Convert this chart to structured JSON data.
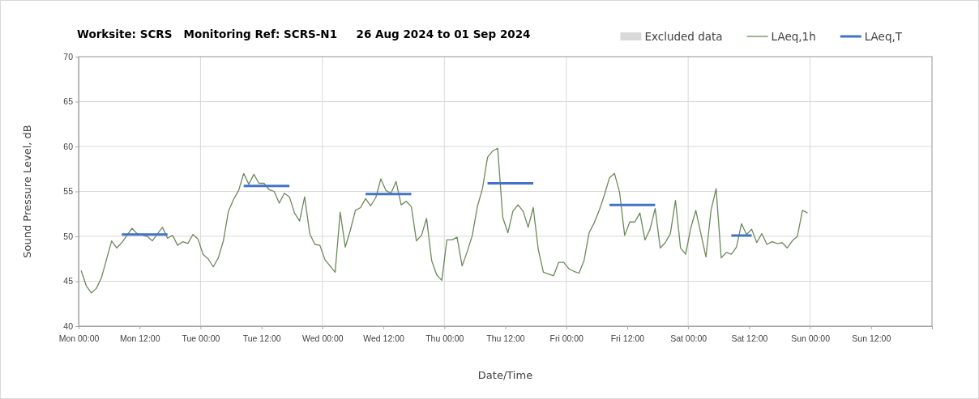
{
  "chart_data": {
    "type": "line",
    "title": "Worksite: SCRS   Monitoring Ref: SCRS-N1     26 Aug 2024 to 01 Sep 2024",
    "xlabel": "Date/Time",
    "ylabel": "Sound Pressure Level, dB",
    "xlim": [
      "2024-08-26T00:00",
      "2024-09-02T00:00"
    ],
    "xticks": [
      {
        "value": "2024-08-26T00:00",
        "label": "Mon 00:00"
      },
      {
        "value": "2024-08-26T12:00",
        "label": "Mon 12:00"
      },
      {
        "value": "2024-08-27T00:00",
        "label": "Tue 00:00"
      },
      {
        "value": "2024-08-27T12:00",
        "label": "Tue 12:00"
      },
      {
        "value": "2024-08-28T00:00",
        "label": "Wed 00:00"
      },
      {
        "value": "2024-08-28T12:00",
        "label": "Wed 12:00"
      },
      {
        "value": "2024-08-29T00:00",
        "label": "Thu 00:00"
      },
      {
        "value": "2024-08-29T12:00",
        "label": "Thu 12:00"
      },
      {
        "value": "2024-08-30T00:00",
        "label": "Fri 00:00"
      },
      {
        "value": "2024-08-30T12:00",
        "label": "Fri 12:00"
      },
      {
        "value": "2024-08-31T00:00",
        "label": "Sat 00:00"
      },
      {
        "value": "2024-08-31T12:00",
        "label": "Sat 12:00"
      },
      {
        "value": "2024-09-01T00:00",
        "label": "Sun 00:00"
      },
      {
        "value": "2024-09-01T12:00",
        "label": "Sun 12:00"
      },
      {
        "value": "2024-09-02T00:00",
        "label": null
      }
    ],
    "ylim": [
      40,
      70
    ],
    "yticks": [
      40,
      45,
      50,
      55,
      60,
      65,
      70
    ],
    "grid": true,
    "legend": "top right",
    "series": [
      {
        "name": "Excluded data",
        "type": "area",
        "color": "#d9d9d9"
      },
      {
        "name": "LAeq,1h",
        "color": "#6b8a5a",
        "x": [
          "2024-08-26T00:30",
          "2024-08-26T01:30",
          "2024-08-26T02:30",
          "2024-08-26T03:30",
          "2024-08-26T04:30",
          "2024-08-26T06:30",
          "2024-08-26T07:30",
          "2024-08-26T08:30",
          "2024-08-26T10:30",
          "2024-08-26T11:30",
          "2024-08-26T13:30",
          "2024-08-26T14:30",
          "2024-08-26T16:30",
          "2024-08-26T17:30",
          "2024-08-26T18:30",
          "2024-08-26T19:30",
          "2024-08-26T20:30",
          "2024-08-26T21:30",
          "2024-08-26T22:30",
          "2024-08-26T23:30",
          "2024-08-27T00:30",
          "2024-08-27T01:30",
          "2024-08-27T02:30",
          "2024-08-27T03:30",
          "2024-08-27T04:30",
          "2024-08-27T05:30",
          "2024-08-27T06:30",
          "2024-08-27T07:30",
          "2024-08-27T08:30",
          "2024-08-27T09:30",
          "2024-08-27T10:30",
          "2024-08-27T11:30",
          "2024-08-27T12:30",
          "2024-08-27T13:30",
          "2024-08-27T14:30",
          "2024-08-27T15:30",
          "2024-08-27T16:30",
          "2024-08-27T17:30",
          "2024-08-27T18:30",
          "2024-08-27T19:30",
          "2024-08-27T20:30",
          "2024-08-27T21:30",
          "2024-08-27T22:30",
          "2024-08-27T23:30",
          "2024-08-28T00:30",
          "2024-08-28T02:30",
          "2024-08-28T03:30",
          "2024-08-28T04:30",
          "2024-08-28T05:30",
          "2024-08-28T06:30",
          "2024-08-28T07:30",
          "2024-08-28T08:30",
          "2024-08-28T09:30",
          "2024-08-28T10:30",
          "2024-08-28T11:30",
          "2024-08-28T12:30",
          "2024-08-28T13:30",
          "2024-08-28T14:30",
          "2024-08-28T15:30",
          "2024-08-28T16:30",
          "2024-08-28T17:30",
          "2024-08-28T18:30",
          "2024-08-28T19:30",
          "2024-08-28T20:30",
          "2024-08-28T21:30",
          "2024-08-28T22:30",
          "2024-08-28T23:30",
          "2024-08-29T00:30",
          "2024-08-29T01:30",
          "2024-08-29T02:30",
          "2024-08-29T03:30",
          "2024-08-29T04:30",
          "2024-08-29T05:30",
          "2024-08-29T06:30",
          "2024-08-29T07:30",
          "2024-08-29T08:30",
          "2024-08-29T09:30",
          "2024-08-29T10:30",
          "2024-08-29T11:30",
          "2024-08-29T12:30",
          "2024-08-29T13:30",
          "2024-08-29T14:30",
          "2024-08-29T15:30",
          "2024-08-29T16:30",
          "2024-08-29T17:30",
          "2024-08-29T18:30",
          "2024-08-29T19:30",
          "2024-08-29T20:30",
          "2024-08-29T21:30",
          "2024-08-29T22:30",
          "2024-08-29T23:30",
          "2024-08-30T00:30",
          "2024-08-30T01:30",
          "2024-08-30T02:30",
          "2024-08-30T03:30",
          "2024-08-30T04:30",
          "2024-08-30T05:30",
          "2024-08-30T06:30",
          "2024-08-30T07:30",
          "2024-08-30T08:30",
          "2024-08-30T09:30",
          "2024-08-30T10:30",
          "2024-08-30T11:30",
          "2024-08-30T12:30",
          "2024-08-30T13:30",
          "2024-08-30T14:30",
          "2024-08-30T15:30",
          "2024-08-30T16:30",
          "2024-08-30T17:30",
          "2024-08-30T18:30",
          "2024-08-30T19:30",
          "2024-08-30T20:30",
          "2024-08-30T21:30",
          "2024-08-30T22:30",
          "2024-08-30T23:30",
          "2024-08-31T00:30",
          "2024-08-31T01:30",
          "2024-08-31T02:30",
          "2024-08-31T03:30",
          "2024-08-31T04:30",
          "2024-08-31T05:30",
          "2024-08-31T06:30",
          "2024-08-31T07:30",
          "2024-08-31T08:30",
          "2024-08-31T09:30",
          "2024-08-31T10:30",
          "2024-08-31T11:30",
          "2024-08-31T12:30",
          "2024-08-31T13:30",
          "2024-08-31T14:30",
          "2024-08-31T15:30",
          "2024-08-31T16:30",
          "2024-08-31T17:30",
          "2024-08-31T18:30",
          "2024-08-31T19:30",
          "2024-08-31T20:30",
          "2024-08-31T21:30",
          "2024-08-31T22:30",
          "2024-08-31T23:30"
        ],
        "values": [
          46.2,
          44.5,
          43.7,
          44.2,
          45.4,
          49.5,
          48.7,
          49.3,
          50.9,
          50.3,
          50.0,
          49.5,
          51.0,
          49.8,
          50.1,
          49.0,
          49.4,
          49.2,
          50.2,
          49.7,
          48.0,
          47.5,
          46.6,
          47.6,
          49.5,
          52.8,
          54.1,
          55.1,
          57.0,
          55.8,
          56.9,
          55.9,
          55.9,
          55.2,
          55.0,
          53.7,
          54.8,
          54.4,
          52.6,
          51.7,
          54.4,
          50.3,
          49.1,
          49.0,
          47.4,
          46.0,
          52.7,
          48.8,
          50.7,
          52.9,
          53.2,
          54.2,
          53.4,
          54.3,
          56.4,
          55.1,
          54.8,
          56.1,
          53.5,
          53.9,
          53.3,
          49.5,
          50.1,
          52.0,
          47.3,
          45.7,
          45.1,
          49.6,
          49.6,
          49.9,
          46.7,
          48.3,
          50.1,
          53.3,
          55.3,
          58.8,
          59.5,
          59.8,
          52.1,
          50.4,
          52.8,
          53.5,
          52.8,
          51.0,
          53.2,
          48.5,
          46.0,
          45.8,
          45.6,
          47.1,
          47.1,
          46.4,
          46.1,
          45.9,
          47.3,
          50.4,
          51.5,
          52.9,
          54.6,
          56.5,
          57.0,
          54.9,
          50.1,
          51.6,
          51.6,
          52.6,
          49.6,
          50.8,
          53.1,
          48.7,
          49.3,
          50.3,
          54.0,
          48.7,
          48.0,
          50.9,
          52.9,
          50.3,
          47.7,
          52.9,
          55.3,
          47.6,
          48.2,
          48.0,
          48.8,
          51.4,
          50.2,
          50.8,
          49.3,
          50.3,
          49.1,
          49.4,
          49.2,
          49.3,
          48.7,
          49.5,
          50.0,
          52.9,
          52.6
        ]
      },
      {
        "name": "LAeq,T",
        "type": "step",
        "color": "#4472c4",
        "x": [
          "2024-08-26T08:30",
          "2024-08-26T17:30",
          "2024-08-27T00:00",
          "2024-08-27T08:30",
          "2024-08-27T17:30",
          "2024-08-28T00:00",
          "2024-08-28T08:30",
          "2024-08-28T17:30",
          "2024-08-29T00:00",
          "2024-08-29T08:30",
          "2024-08-29T17:30",
          "2024-08-30T00:00",
          "2024-08-30T08:30",
          "2024-08-30T17:30",
          "2024-08-31T00:00",
          "2024-08-31T08:30",
          "2024-08-31T12:30"
        ],
        "values": [
          50.2,
          50.2,
          null,
          55.6,
          55.6,
          null,
          54.7,
          54.7,
          null,
          55.9,
          55.9,
          null,
          53.5,
          53.5,
          null,
          50.1,
          50.1
        ]
      }
    ]
  }
}
